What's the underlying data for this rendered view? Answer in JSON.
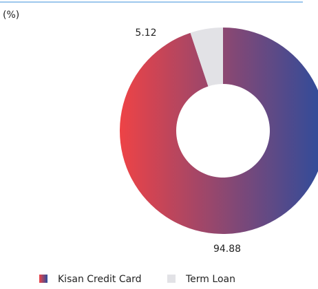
{
  "chart_data": {
    "type": "donut",
    "unit_label": "(%)",
    "categories": [
      "Kisan Credit Card",
      "Term Loan"
    ],
    "values": [
      94.88,
      5.12
    ],
    "colors": [
      "#ee4346",
      "#e2e2e6"
    ],
    "gradient_end": "#2c4c9c"
  }
}
